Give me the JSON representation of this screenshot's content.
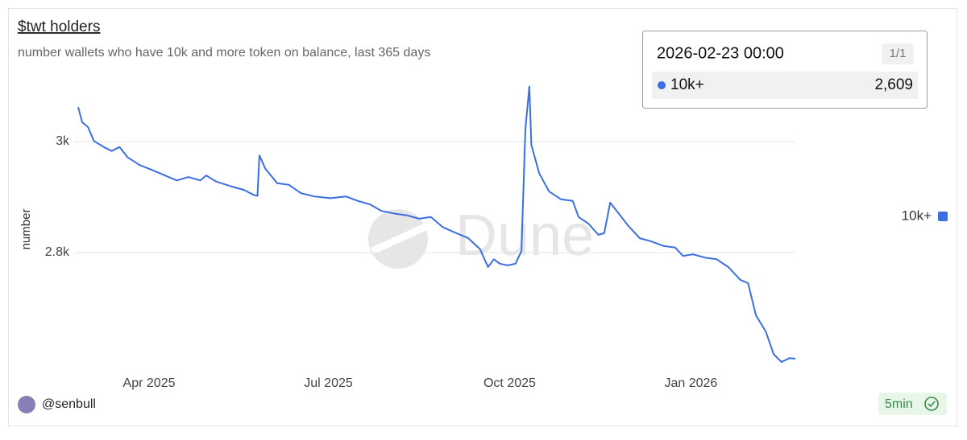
{
  "chart_data": {
    "type": "line",
    "title": "$twt holders",
    "subtitle": "number wallets who have 10k and more token on balance, last 365 days",
    "y_label": "number",
    "x": [
      "2025-02-24",
      "2025-02-26",
      "2025-03-01",
      "2025-03-04",
      "2025-03-09",
      "2025-03-13",
      "2025-03-17",
      "2025-03-21",
      "2025-03-27",
      "2025-04-03",
      "2025-04-09",
      "2025-04-15",
      "2025-04-21",
      "2025-04-27",
      "2025-04-30",
      "2025-05-05",
      "2025-05-13",
      "2025-05-19",
      "2025-05-24",
      "2025-05-26",
      "2025-05-27",
      "2025-05-30",
      "2025-06-05",
      "2025-06-11",
      "2025-06-17",
      "2025-06-24",
      "2025-07-02",
      "2025-07-10",
      "2025-07-16",
      "2025-07-22",
      "2025-07-28",
      "2025-08-04",
      "2025-08-10",
      "2025-08-16",
      "2025-08-22",
      "2025-08-28",
      "2025-09-04",
      "2025-09-10",
      "2025-09-16",
      "2025-09-20",
      "2025-09-23",
      "2025-09-26",
      "2025-09-30",
      "2025-10-04",
      "2025-10-07",
      "2025-10-09",
      "2025-10-11",
      "2025-10-12",
      "2025-10-16",
      "2025-10-21",
      "2025-10-27",
      "2025-11-02",
      "2025-11-05",
      "2025-11-10",
      "2025-11-15",
      "2025-11-18",
      "2025-11-21",
      "2025-11-25",
      "2025-11-30",
      "2025-12-06",
      "2025-12-12",
      "2025-12-18",
      "2025-12-24",
      "2025-12-28",
      "2026-01-02",
      "2026-01-08",
      "2026-01-14",
      "2026-01-20",
      "2026-01-26",
      "2026-01-30",
      "2026-02-03",
      "2026-02-08",
      "2026-02-12",
      "2026-02-16",
      "2026-02-20",
      "2026-02-23"
    ],
    "series": [
      {
        "name": "10k+",
        "color": "#3b6fe0",
        "values": [
          3062,
          3035,
          3026,
          3001,
          2990,
          2983,
          2990,
          2972,
          2958,
          2948,
          2939,
          2930,
          2936,
          2930,
          2939,
          2928,
          2919,
          2913,
          2904,
          2902,
          2975,
          2951,
          2925,
          2922,
          2907,
          2901,
          2898,
          2901,
          2893,
          2887,
          2875,
          2870,
          2867,
          2861,
          2864,
          2846,
          2835,
          2826,
          2806,
          2774,
          2788,
          2780,
          2777,
          2780,
          2803,
          3023,
          3099,
          2994,
          2943,
          2910,
          2896,
          2893,
          2864,
          2852,
          2832,
          2835,
          2890,
          2872,
          2849,
          2826,
          2820,
          2812,
          2809,
          2794,
          2797,
          2791,
          2788,
          2774,
          2751,
          2745,
          2687,
          2658,
          2617,
          2603,
          2610,
          2609
        ]
      }
    ],
    "xlim": [
      "2025-02-24",
      "2026-02-23"
    ],
    "xticks": [
      {
        "value": "2025-04-01",
        "label": "Apr 2025"
      },
      {
        "value": "2025-07-01",
        "label": "Jul 2025"
      },
      {
        "value": "2025-10-01",
        "label": "Oct 2025"
      },
      {
        "value": "2026-01-01",
        "label": "Jan 2026"
      }
    ],
    "ylim": [
      2590,
      3110
    ],
    "yticks": [
      {
        "value": 2800,
        "label": "2.8k"
      },
      {
        "value": 3000,
        "label": "3k"
      }
    ],
    "grid": true,
    "legend": "right",
    "tooltip": {
      "date": "2026-02-23 00:00",
      "page": "1/1",
      "series": "10k+",
      "value": "2,609"
    },
    "watermark": "Dune",
    "author": "@senbull",
    "refresh": "5min"
  }
}
